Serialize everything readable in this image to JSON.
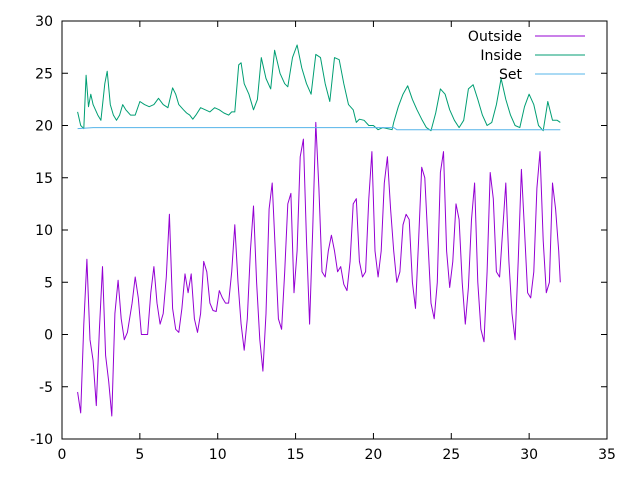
{
  "chart_data": {
    "type": "line",
    "title": "",
    "xlabel": "",
    "ylabel": "",
    "xlim": [
      0,
      35
    ],
    "ylim": [
      -10,
      30
    ],
    "xticks": [
      0,
      5,
      10,
      15,
      20,
      25,
      30,
      35
    ],
    "yticks": [
      -10,
      -5,
      0,
      5,
      10,
      15,
      20,
      25,
      30
    ],
    "grid": false,
    "legend_position": "top-right",
    "series": [
      {
        "name": "Outside",
        "color": "#9400d3",
        "points": [
          [
            1.0,
            -5.5
          ],
          [
            1.2,
            -7.5
          ],
          [
            1.4,
            1.0
          ],
          [
            1.6,
            7.2
          ],
          [
            1.8,
            -0.5
          ],
          [
            2.0,
            -2.5
          ],
          [
            2.2,
            -6.8
          ],
          [
            2.4,
            0.5
          ],
          [
            2.6,
            6.5
          ],
          [
            2.8,
            -2.0
          ],
          [
            3.0,
            -4.5
          ],
          [
            3.2,
            -7.8
          ],
          [
            3.4,
            2.0
          ],
          [
            3.6,
            5.2
          ],
          [
            3.8,
            1.5
          ],
          [
            4.0,
            -0.5
          ],
          [
            4.2,
            0.2
          ],
          [
            4.5,
            3.0
          ],
          [
            4.7,
            5.5
          ],
          [
            4.9,
            3.5
          ],
          [
            5.1,
            0.0
          ],
          [
            5.3,
            0.0
          ],
          [
            5.5,
            0.0
          ],
          [
            5.7,
            4.0
          ],
          [
            5.9,
            6.5
          ],
          [
            6.1,
            3.0
          ],
          [
            6.3,
            1.0
          ],
          [
            6.5,
            2.0
          ],
          [
            6.7,
            5.5
          ],
          [
            6.9,
            11.5
          ],
          [
            7.1,
            2.5
          ],
          [
            7.3,
            0.5
          ],
          [
            7.5,
            0.2
          ],
          [
            7.7,
            2.5
          ],
          [
            7.9,
            5.8
          ],
          [
            8.1,
            4.0
          ],
          [
            8.3,
            5.8
          ],
          [
            8.5,
            1.5
          ],
          [
            8.7,
            0.2
          ],
          [
            8.9,
            2.0
          ],
          [
            9.1,
            7.0
          ],
          [
            9.3,
            6.0
          ],
          [
            9.5,
            3.0
          ],
          [
            9.7,
            2.3
          ],
          [
            9.9,
            2.2
          ],
          [
            10.1,
            4.2
          ],
          [
            10.3,
            3.5
          ],
          [
            10.5,
            3.0
          ],
          [
            10.7,
            3.0
          ],
          [
            10.9,
            6.0
          ],
          [
            11.1,
            10.5
          ],
          [
            11.3,
            5.0
          ],
          [
            11.5,
            1.0
          ],
          [
            11.7,
            -1.5
          ],
          [
            11.9,
            1.5
          ],
          [
            12.1,
            8.0
          ],
          [
            12.3,
            12.3
          ],
          [
            12.5,
            5.0
          ],
          [
            12.7,
            -0.5
          ],
          [
            12.9,
            -3.5
          ],
          [
            13.1,
            2.0
          ],
          [
            13.3,
            12.0
          ],
          [
            13.5,
            14.5
          ],
          [
            13.7,
            8.0
          ],
          [
            13.9,
            1.5
          ],
          [
            14.1,
            0.5
          ],
          [
            14.3,
            6.0
          ],
          [
            14.5,
            12.5
          ],
          [
            14.7,
            13.5
          ],
          [
            14.9,
            4.0
          ],
          [
            15.1,
            8.0
          ],
          [
            15.3,
            17.0
          ],
          [
            15.5,
            18.7
          ],
          [
            15.7,
            9.0
          ],
          [
            15.9,
            1.0
          ],
          [
            16.1,
            10.0
          ],
          [
            16.3,
            20.3
          ],
          [
            16.5,
            14.0
          ],
          [
            16.7,
            6.0
          ],
          [
            16.9,
            5.5
          ],
          [
            17.1,
            8.0
          ],
          [
            17.3,
            9.5
          ],
          [
            17.5,
            8.0
          ],
          [
            17.7,
            6.0
          ],
          [
            17.9,
            6.5
          ],
          [
            18.1,
            4.8
          ],
          [
            18.3,
            4.2
          ],
          [
            18.5,
            7.0
          ],
          [
            18.7,
            12.5
          ],
          [
            18.9,
            13.0
          ],
          [
            19.1,
            7.0
          ],
          [
            19.3,
            5.5
          ],
          [
            19.5,
            6.0
          ],
          [
            19.7,
            13.0
          ],
          [
            19.9,
            17.5
          ],
          [
            20.1,
            8.0
          ],
          [
            20.3,
            5.5
          ],
          [
            20.5,
            8.0
          ],
          [
            20.7,
            14.5
          ],
          [
            20.9,
            17.0
          ],
          [
            21.1,
            12.0
          ],
          [
            21.3,
            8.0
          ],
          [
            21.5,
            5.0
          ],
          [
            21.7,
            6.0
          ],
          [
            21.9,
            10.5
          ],
          [
            22.1,
            11.5
          ],
          [
            22.3,
            11.0
          ],
          [
            22.5,
            5.0
          ],
          [
            22.7,
            2.5
          ],
          [
            22.9,
            9.0
          ],
          [
            23.1,
            16.0
          ],
          [
            23.3,
            15.0
          ],
          [
            23.5,
            9.0
          ],
          [
            23.7,
            3.0
          ],
          [
            23.9,
            1.5
          ],
          [
            24.1,
            5.0
          ],
          [
            24.3,
            15.5
          ],
          [
            24.5,
            17.5
          ],
          [
            24.7,
            8.0
          ],
          [
            24.9,
            4.5
          ],
          [
            25.1,
            7.0
          ],
          [
            25.3,
            12.5
          ],
          [
            25.5,
            11.0
          ],
          [
            25.7,
            5.0
          ],
          [
            25.9,
            1.0
          ],
          [
            26.1,
            4.5
          ],
          [
            26.3,
            11.0
          ],
          [
            26.5,
            14.5
          ],
          [
            26.7,
            5.0
          ],
          [
            26.9,
            0.5
          ],
          [
            27.1,
            -0.7
          ],
          [
            27.3,
            6.0
          ],
          [
            27.5,
            15.5
          ],
          [
            27.7,
            13.0
          ],
          [
            27.9,
            6.0
          ],
          [
            28.1,
            5.5
          ],
          [
            28.3,
            10.0
          ],
          [
            28.5,
            14.5
          ],
          [
            28.7,
            7.0
          ],
          [
            28.9,
            2.0
          ],
          [
            29.1,
            -0.5
          ],
          [
            29.3,
            7.0
          ],
          [
            29.5,
            15.8
          ],
          [
            29.7,
            10.0
          ],
          [
            29.9,
            4.0
          ],
          [
            30.1,
            3.5
          ],
          [
            30.3,
            6.0
          ],
          [
            30.5,
            14.0
          ],
          [
            30.7,
            17.5
          ],
          [
            30.9,
            9.0
          ],
          [
            31.1,
            4.0
          ],
          [
            31.3,
            5.0
          ],
          [
            31.5,
            14.5
          ],
          [
            31.7,
            12.0
          ],
          [
            31.9,
            8.0
          ],
          [
            32.0,
            5.0
          ]
        ]
      },
      {
        "name": "Inside",
        "color": "#009e73",
        "points": [
          [
            1.0,
            21.3
          ],
          [
            1.2,
            20.0
          ],
          [
            1.4,
            19.7
          ],
          [
            1.55,
            24.8
          ],
          [
            1.7,
            21.8
          ],
          [
            1.85,
            23.0
          ],
          [
            2.0,
            22.0
          ],
          [
            2.3,
            21.0
          ],
          [
            2.5,
            20.5
          ],
          [
            2.75,
            24.0
          ],
          [
            2.9,
            25.2
          ],
          [
            3.1,
            22.0
          ],
          [
            3.3,
            21.0
          ],
          [
            3.5,
            20.5
          ],
          [
            3.7,
            21.0
          ],
          [
            3.9,
            22.0
          ],
          [
            4.1,
            21.5
          ],
          [
            4.4,
            21.0
          ],
          [
            4.7,
            21.0
          ],
          [
            5.0,
            22.3
          ],
          [
            5.3,
            22.0
          ],
          [
            5.6,
            21.8
          ],
          [
            5.9,
            22.0
          ],
          [
            6.2,
            22.6
          ],
          [
            6.5,
            22.0
          ],
          [
            6.8,
            21.7
          ],
          [
            7.1,
            23.6
          ],
          [
            7.3,
            23.0
          ],
          [
            7.5,
            22.0
          ],
          [
            7.8,
            21.5
          ],
          [
            8.0,
            21.2
          ],
          [
            8.2,
            21.0
          ],
          [
            8.4,
            20.6
          ],
          [
            8.6,
            21.0
          ],
          [
            8.9,
            21.7
          ],
          [
            9.2,
            21.5
          ],
          [
            9.5,
            21.3
          ],
          [
            9.8,
            21.7
          ],
          [
            10.1,
            21.5
          ],
          [
            10.4,
            21.2
          ],
          [
            10.7,
            21.0
          ],
          [
            10.9,
            21.3
          ],
          [
            11.1,
            21.3
          ],
          [
            11.35,
            25.8
          ],
          [
            11.5,
            26.0
          ],
          [
            11.7,
            24.0
          ],
          [
            12.0,
            23.0
          ],
          [
            12.3,
            21.5
          ],
          [
            12.55,
            22.5
          ],
          [
            12.8,
            26.5
          ],
          [
            13.1,
            24.5
          ],
          [
            13.4,
            23.5
          ],
          [
            13.65,
            27.2
          ],
          [
            14.0,
            25.0
          ],
          [
            14.3,
            24.0
          ],
          [
            14.5,
            23.7
          ],
          [
            14.8,
            26.5
          ],
          [
            15.1,
            27.7
          ],
          [
            15.4,
            25.5
          ],
          [
            15.7,
            24.0
          ],
          [
            16.0,
            23.0
          ],
          [
            16.3,
            26.8
          ],
          [
            16.6,
            26.5
          ],
          [
            16.9,
            24.0
          ],
          [
            17.2,
            22.3
          ],
          [
            17.5,
            26.5
          ],
          [
            17.8,
            26.3
          ],
          [
            18.1,
            24.0
          ],
          [
            18.4,
            22.0
          ],
          [
            18.7,
            21.5
          ],
          [
            18.9,
            20.3
          ],
          [
            19.1,
            20.6
          ],
          [
            19.4,
            20.5
          ],
          [
            19.7,
            20.0
          ],
          [
            20.0,
            20.0
          ],
          [
            20.3,
            19.6
          ],
          [
            20.6,
            19.8
          ],
          [
            20.9,
            19.7
          ],
          [
            21.2,
            19.6
          ],
          [
            21.3,
            20.3
          ],
          [
            21.6,
            21.8
          ],
          [
            21.9,
            23.0
          ],
          [
            22.2,
            23.8
          ],
          [
            22.5,
            22.5
          ],
          [
            22.8,
            21.5
          ],
          [
            23.1,
            20.6
          ],
          [
            23.4,
            19.8
          ],
          [
            23.7,
            19.5
          ],
          [
            24.0,
            21.2
          ],
          [
            24.3,
            23.5
          ],
          [
            24.6,
            23.0
          ],
          [
            24.9,
            21.5
          ],
          [
            25.2,
            20.5
          ],
          [
            25.5,
            19.8
          ],
          [
            25.8,
            20.5
          ],
          [
            26.1,
            23.5
          ],
          [
            26.4,
            23.9
          ],
          [
            26.7,
            22.5
          ],
          [
            27.0,
            21.0
          ],
          [
            27.3,
            20.0
          ],
          [
            27.6,
            20.3
          ],
          [
            27.9,
            22.0
          ],
          [
            28.2,
            24.5
          ],
          [
            28.5,
            22.5
          ],
          [
            28.8,
            21.0
          ],
          [
            29.1,
            20.0
          ],
          [
            29.4,
            19.8
          ],
          [
            29.7,
            21.8
          ],
          [
            30.0,
            23.0
          ],
          [
            30.3,
            22.0
          ],
          [
            30.6,
            20.0
          ],
          [
            30.9,
            19.5
          ],
          [
            31.2,
            22.3
          ],
          [
            31.5,
            20.5
          ],
          [
            31.8,
            20.5
          ],
          [
            32.0,
            20.3
          ]
        ]
      },
      {
        "name": "Set",
        "color": "#56b4e9",
        "points": [
          [
            1.0,
            19.7
          ],
          [
            2.0,
            19.8
          ],
          [
            10.0,
            19.8
          ],
          [
            21.3,
            19.8
          ],
          [
            21.5,
            19.6
          ],
          [
            25.0,
            19.6
          ],
          [
            32.0,
            19.6
          ]
        ]
      }
    ]
  }
}
